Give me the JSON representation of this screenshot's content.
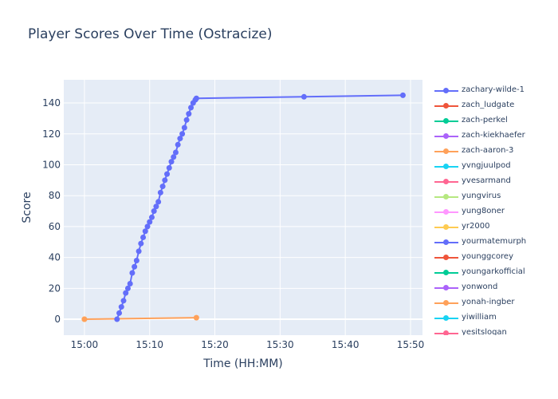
{
  "chart_data": {
    "type": "line",
    "title": "Player Scores Over Time (Ostracize)",
    "xlabel": "Time (HH:MM)",
    "ylabel": "Score",
    "xlim": [
      "14:56:50",
      "15:51:50"
    ],
    "ylim": [
      -10.3,
      155
    ],
    "xticks": [
      "15:00",
      "15:10",
      "15:20",
      "15:30",
      "15:40",
      "15:50"
    ],
    "yticks": [
      0,
      20,
      40,
      60,
      80,
      100,
      120,
      140
    ],
    "grid": true,
    "legend_placement": "right",
    "series": [
      {
        "name": "zachary-wilde-1",
        "color": "#636efa",
        "x": [
          "15:05:00",
          "15:05:20",
          "15:05:40",
          "15:06:00",
          "15:06:20",
          "15:06:40",
          "15:07:00",
          "15:07:20",
          "15:07:40",
          "15:08:00",
          "15:08:20",
          "15:08:40",
          "15:09:00",
          "15:09:20",
          "15:09:40",
          "15:10:00",
          "15:10:20",
          "15:10:40",
          "15:11:00",
          "15:11:20",
          "15:11:40",
          "15:12:00",
          "15:12:20",
          "15:12:40",
          "15:13:00",
          "15:13:20",
          "15:13:40",
          "15:14:00",
          "15:14:20",
          "15:14:40",
          "15:15:00",
          "15:15:20",
          "15:15:40",
          "15:16:00",
          "15:16:20",
          "15:16:40",
          "15:17:00",
          "15:17:10",
          "15:33:40",
          "15:48:50"
        ],
        "y": [
          0,
          4,
          8,
          12,
          17,
          20,
          23,
          30,
          34,
          38,
          44,
          49,
          53,
          57,
          60,
          63,
          66,
          70,
          73,
          76,
          82,
          86,
          90,
          94,
          98,
          102,
          105,
          108,
          113,
          117,
          120,
          124,
          129,
          133,
          137,
          140,
          142,
          143,
          144,
          145
        ]
      },
      {
        "name": "zach_ludgate",
        "color": "#ef553b",
        "x": [],
        "y": []
      },
      {
        "name": "zach-perkel",
        "color": "#00cc96",
        "x": [],
        "y": []
      },
      {
        "name": "zach-kiekhaefer",
        "color": "#ab63fa",
        "x": [],
        "y": []
      },
      {
        "name": "zach-aaron-3",
        "color": "#ffa15a",
        "x": [
          "15:00:00",
          "15:17:10"
        ],
        "y": [
          0,
          1
        ]
      },
      {
        "name": "yvngjuulpod",
        "color": "#19d3f3",
        "x": [],
        "y": []
      },
      {
        "name": "yvesarmand",
        "color": "#ff6692",
        "x": [],
        "y": []
      },
      {
        "name": "yungvirus",
        "color": "#b6e880",
        "x": [],
        "y": []
      },
      {
        "name": "yung8oner",
        "color": "#ff97ff",
        "x": [],
        "y": []
      },
      {
        "name": "yr2000",
        "color": "#fecb52",
        "x": [
          "15:00:00"
        ],
        "y": [
          0
        ]
      },
      {
        "name": "yourmatemurph",
        "color": "#636efa",
        "x": [],
        "y": []
      },
      {
        "name": "younggcorey",
        "color": "#ef553b",
        "x": [],
        "y": []
      },
      {
        "name": "youngarkofficial",
        "color": "#00cc96",
        "x": [],
        "y": []
      },
      {
        "name": "yonwond",
        "color": "#ab63fa",
        "x": [],
        "y": []
      },
      {
        "name": "yonah-ingber",
        "color": "#ffa15a",
        "x": [],
        "y": []
      },
      {
        "name": "yiwilliam",
        "color": "#19d3f3",
        "x": [],
        "y": []
      },
      {
        "name": "yesitslogan",
        "color": "#ff6692",
        "x": [],
        "y": []
      }
    ]
  }
}
